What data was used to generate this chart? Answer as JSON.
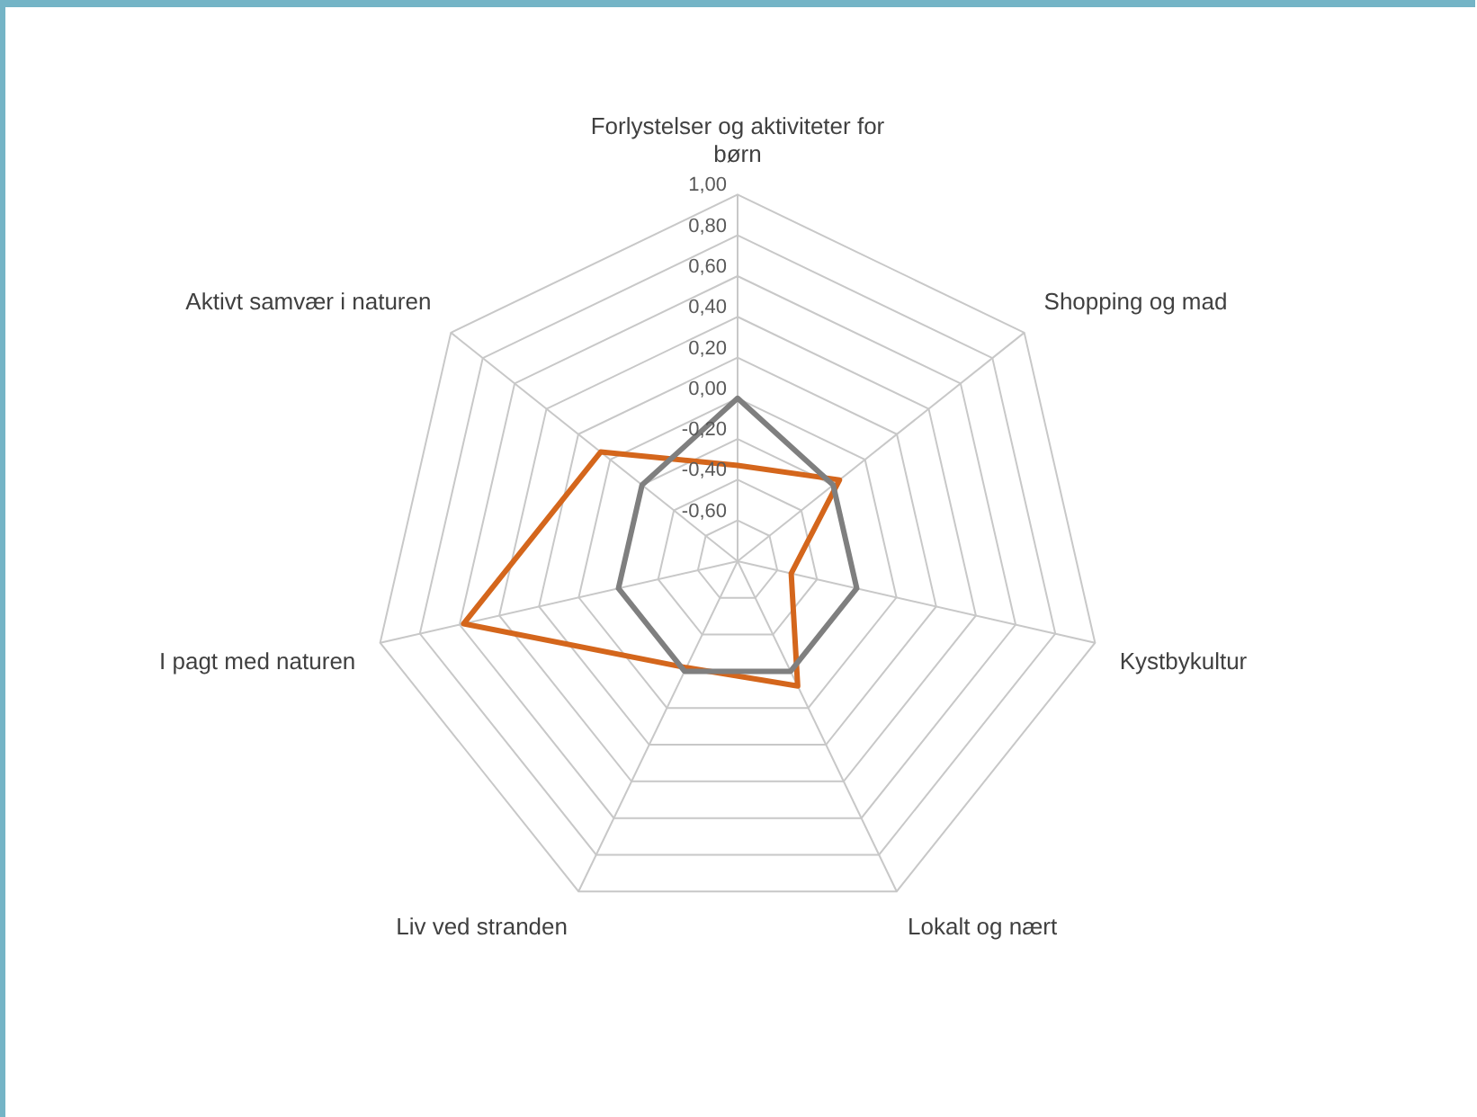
{
  "chart_data": {
    "type": "radar",
    "categories": [
      "Forlystelser og aktiviteter for børn",
      "Shopping og mad",
      "Kystbykultur",
      "Lokalt og nært",
      "Liv ved stranden",
      "I pagt med naturen",
      "Aktivt samvær i naturen"
    ],
    "series": [
      {
        "color": "#7f7f7f",
        "values": [
          0,
          -0.2,
          -0.2,
          -0.2,
          -0.2,
          -0.2,
          -0.2
        ]
      },
      {
        "color": "#d4661c",
        "values": [
          -0.33,
          -0.16,
          -0.53,
          -0.12,
          -0.22,
          0.58,
          0.06
        ]
      }
    ],
    "ylim": [
      -0.8,
      1
    ],
    "yticks": [
      {
        "value": -0.6,
        "label": "-0,60"
      },
      {
        "value": -0.4,
        "label": "-0,40"
      },
      {
        "value": -0.2,
        "label": "-0,20"
      },
      {
        "value": 0,
        "label": "0,00"
      },
      {
        "value": 0.2,
        "label": "0,20"
      },
      {
        "value": 0.4,
        "label": "0,40"
      },
      {
        "value": 0.6,
        "label": "0,60"
      },
      {
        "value": 0.8,
        "label": "0,80"
      },
      {
        "value": 1,
        "label": "1,00"
      }
    ],
    "grid": true,
    "legend": false
  }
}
